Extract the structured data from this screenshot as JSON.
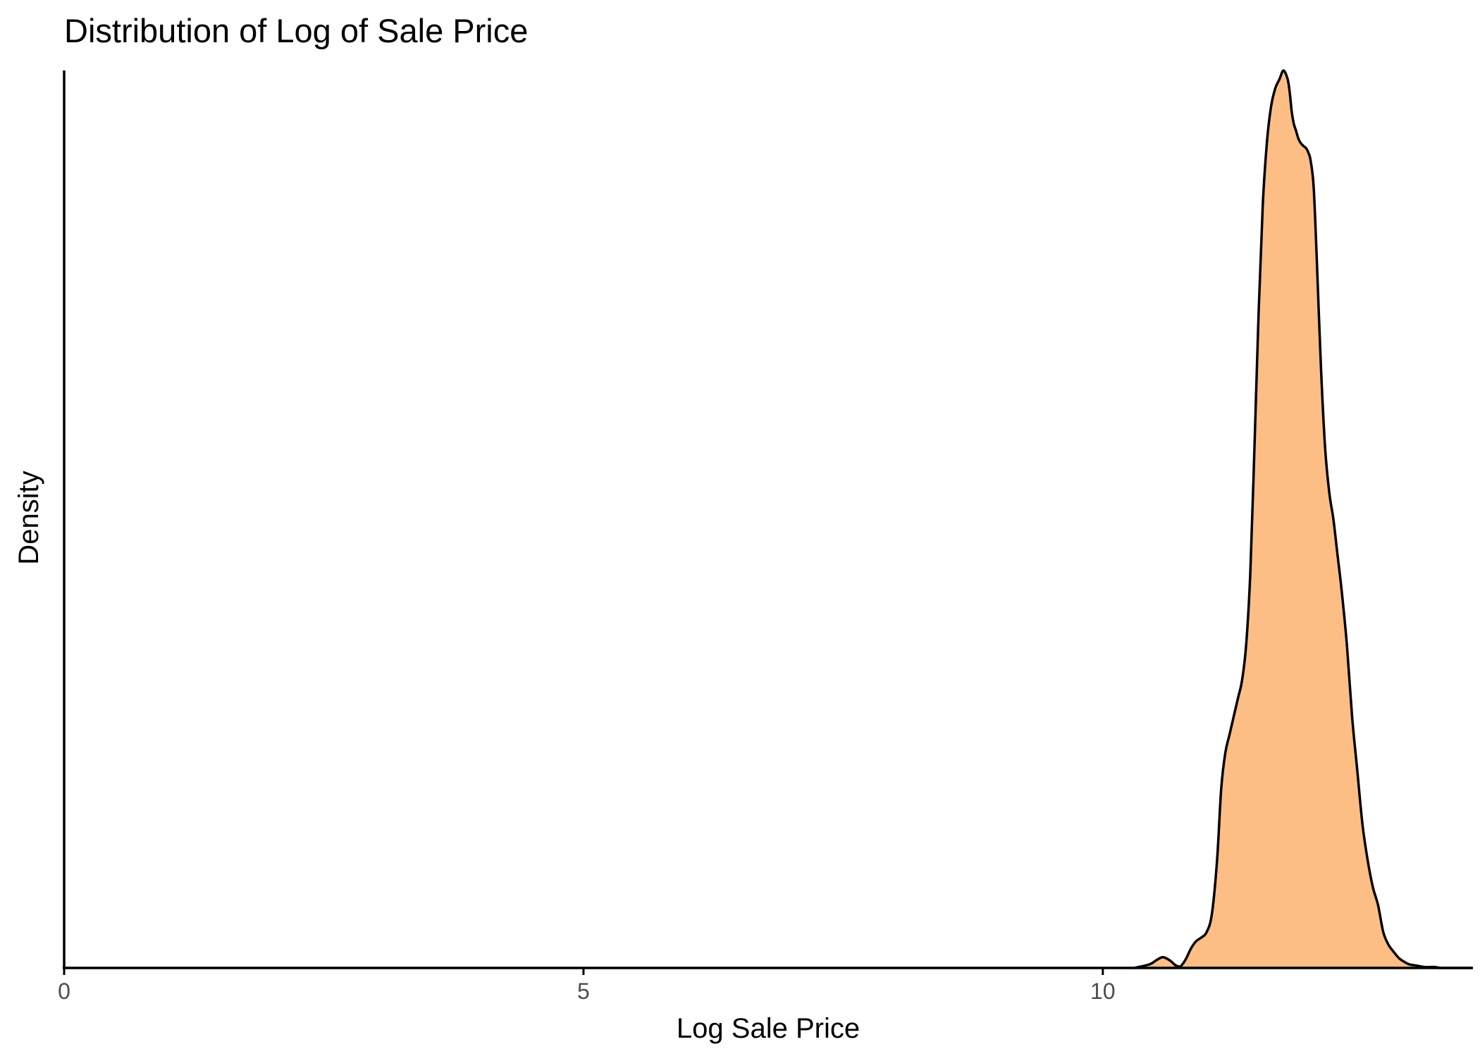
{
  "chart_data": {
    "type": "area",
    "title": "Distribution of Log of Sale Price",
    "xlabel": "Log Sale Price",
    "ylabel": "Density",
    "xlim": [
      0,
      13.55
    ],
    "ylim": [
      0,
      1.0
    ],
    "x_ticks": [
      {
        "value": 0,
        "label": "0"
      },
      {
        "value": 5,
        "label": "5"
      },
      {
        "value": 10,
        "label": "10"
      }
    ],
    "y_ticks_shown": false,
    "grid": false,
    "legend": "none",
    "fill_color": "#FDBE85",
    "line_color": "#000000",
    "series": [
      {
        "x": [
          10.3,
          10.45,
          10.52,
          10.58,
          10.65,
          10.7,
          10.75,
          10.8,
          10.85,
          10.9,
          10.95,
          11.0,
          11.05,
          11.1,
          11.14,
          11.18,
          11.22,
          11.26,
          11.3,
          11.34,
          11.38,
          11.42,
          11.46,
          11.5,
          11.54,
          11.58,
          11.62,
          11.66,
          11.7,
          11.74,
          11.78,
          11.8,
          11.82,
          11.84,
          11.86,
          11.88,
          11.9,
          11.93,
          11.96,
          11.98,
          12.0,
          12.03,
          12.06,
          12.1,
          12.14,
          12.18,
          12.22,
          12.26,
          12.3,
          12.35,
          12.4,
          12.45,
          12.5,
          12.55,
          12.6,
          12.65,
          12.7,
          12.75,
          12.8,
          12.85,
          12.9,
          12.95,
          13.0,
          13.05,
          13.1,
          13.15,
          13.2,
          13.25,
          13.3,
          13.35,
          13.4,
          13.45,
          13.55
        ],
        "y": [
          0.0,
          0.004,
          0.009,
          0.012,
          0.008,
          0.003,
          0.002,
          0.01,
          0.022,
          0.03,
          0.034,
          0.04,
          0.06,
          0.12,
          0.2,
          0.24,
          0.26,
          0.28,
          0.3,
          0.32,
          0.36,
          0.44,
          0.58,
          0.73,
          0.85,
          0.92,
          0.96,
          0.98,
          0.99,
          1.0,
          0.99,
          0.975,
          0.953,
          0.94,
          0.933,
          0.925,
          0.92,
          0.916,
          0.913,
          0.908,
          0.9,
          0.87,
          0.79,
          0.67,
          0.58,
          0.53,
          0.5,
          0.46,
          0.42,
          0.36,
          0.28,
          0.22,
          0.16,
          0.12,
          0.09,
          0.07,
          0.04,
          0.026,
          0.018,
          0.011,
          0.007,
          0.004,
          0.003,
          0.002,
          0.001,
          0.001,
          0.001,
          0.0,
          0.0,
          0.0,
          0.0,
          0.0,
          0.0
        ]
      }
    ]
  }
}
